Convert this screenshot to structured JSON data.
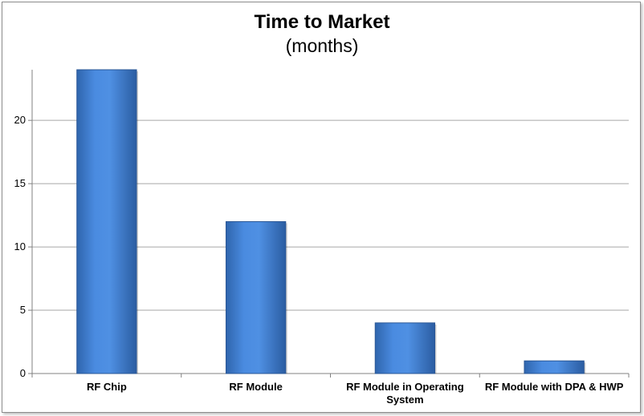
{
  "chart_data": {
    "type": "bar",
    "title": "Time to Market",
    "subtitle": "(months)",
    "categories": [
      "RF Chip",
      "RF Module",
      "RF Module in Operating System",
      "RF Module with DPA & HWP"
    ],
    "values": [
      24,
      12,
      4,
      1
    ],
    "ylim": [
      0,
      24
    ],
    "yticks": [
      0,
      5,
      10,
      15,
      20
    ],
    "grid": true,
    "legend": "none",
    "bar_color": "#3f7fcf"
  }
}
